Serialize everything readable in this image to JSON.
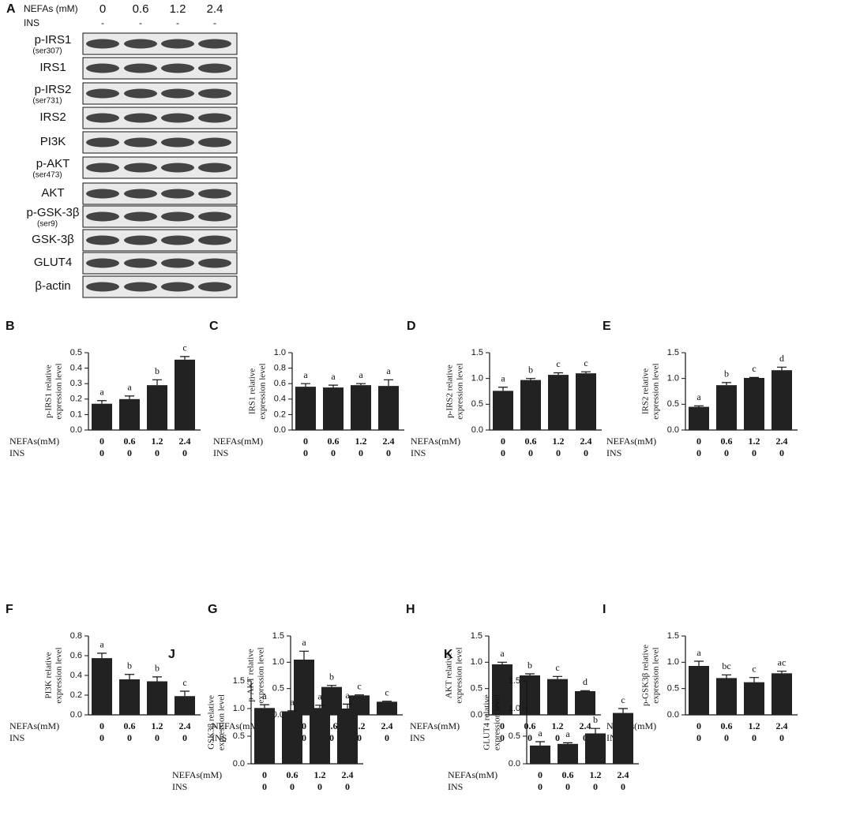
{
  "blot": {
    "panel": "A",
    "nefa_label": "NEFAs (mM)",
    "nefa": [
      "0",
      "0.6",
      "1.2",
      "2.4"
    ],
    "ins_label": "INS",
    "ins": [
      "-",
      "-",
      "-",
      "-"
    ],
    "rows": [
      {
        "label": "p-IRS1",
        "sub": "(ser307)"
      },
      {
        "label": "IRS1"
      },
      {
        "label": "p-IRS2",
        "sub": "(ser731)"
      },
      {
        "label": "IRS2"
      },
      {
        "label": "PI3K"
      },
      {
        "label": "p-AKT",
        "sub": "(ser473)"
      },
      {
        "label": "AKT"
      },
      {
        "label": "p-GSK-3β",
        "sub": "(ser9)"
      },
      {
        "label": "GSK-3β"
      },
      {
        "label": "GLUT4"
      },
      {
        "label": "β-actin"
      }
    ]
  },
  "chart_data": [
    {
      "type": "bar",
      "panel": "B",
      "ylabel": [
        "p-IRS1 relative",
        "expression level"
      ],
      "nefa_label": "NEFAs(mM)",
      "categories": [
        "0",
        "0.6",
        "1.2",
        "2.4"
      ],
      "ins_label": "INS",
      "ins": [
        "0",
        "0",
        "0",
        "0"
      ],
      "values": [
        0.17,
        0.2,
        0.29,
        0.455
      ],
      "errors": [
        0.02,
        0.02,
        0.035,
        0.02
      ],
      "annotations": [
        "a",
        "a",
        "b",
        "c"
      ],
      "color": "#222222",
      "ylim": [
        0,
        0.5
      ],
      "yticks": [
        {
          "value": 0,
          "label": "0.0"
        },
        0.1,
        0.2,
        0.3,
        0.4,
        0.5
      ]
    },
    {
      "type": "bar",
      "panel": "C",
      "ylabel": [
        "IRS1 relative",
        "expression level"
      ],
      "nefa_label": "NEFAs(mM)",
      "categories": [
        "0",
        "0.6",
        "1.2",
        "2.4"
      ],
      "ins_label": "INS",
      "ins": [
        "0",
        "0",
        "0",
        "0"
      ],
      "values": [
        0.56,
        0.55,
        0.58,
        0.57
      ],
      "errors": [
        0.04,
        0.03,
        0.02,
        0.08
      ],
      "annotations": [
        "a",
        "a",
        "a",
        "a"
      ],
      "color": "#222222",
      "ylim": [
        0,
        1.0
      ],
      "yticks": [
        {
          "value": 0,
          "label": "0.0"
        },
        0.2,
        0.4,
        0.6,
        0.8,
        {
          "value": 1,
          "label": "1.0"
        }
      ]
    },
    {
      "type": "bar",
      "panel": "D",
      "ylabel": [
        "p-IRS2 relative",
        "expression level"
      ],
      "nefa_label": "NEFAs(mM)",
      "categories": [
        "0",
        "0.6",
        "1.2",
        "2.4"
      ],
      "ins_label": "INS",
      "ins": [
        "0",
        "0",
        "0",
        "0"
      ],
      "values": [
        0.76,
        0.97,
        1.07,
        1.1
      ],
      "errors": [
        0.07,
        0.03,
        0.04,
        0.03
      ],
      "annotations": [
        "a",
        "b",
        "c",
        "c"
      ],
      "color": "#222222",
      "ylim": [
        0,
        1.5
      ],
      "yticks": [
        {
          "value": 0,
          "label": "0.0"
        },
        0.5,
        {
          "value": 1,
          "label": "1.0"
        },
        1.5
      ]
    },
    {
      "type": "bar",
      "panel": "E",
      "ylabel": [
        "IRS2 relative",
        "expression level"
      ],
      "nefa_label": "NEFAs(mM)",
      "categories": [
        "0",
        "0.6",
        "1.2",
        "2.4"
      ],
      "ins_label": "INS",
      "ins": [
        "0",
        "0",
        "0",
        "0"
      ],
      "values": [
        0.45,
        0.87,
        1.01,
        1.16
      ],
      "errors": [
        0.02,
        0.05,
        0.01,
        0.06
      ],
      "annotations": [
        "a",
        "b",
        "c",
        "d"
      ],
      "color": "#222222",
      "ylim": [
        0,
        1.5
      ],
      "yticks": [
        {
          "value": 0,
          "label": "0.0"
        },
        0.5,
        {
          "value": 1,
          "label": "1.0"
        },
        1.5
      ]
    },
    {
      "type": "bar",
      "panel": "F",
      "ylabel": [
        "PI3K relative",
        "expression level"
      ],
      "nefa_label": "NEFAs(mM)",
      "categories": [
        "0",
        "0.6",
        "1.2",
        "2.4"
      ],
      "ins_label": "INS",
      "ins": [
        "0",
        "0",
        "0",
        "0"
      ],
      "values": [
        0.575,
        0.36,
        0.34,
        0.19
      ],
      "errors": [
        0.05,
        0.05,
        0.045,
        0.05
      ],
      "annotations": [
        "a",
        "b",
        "b",
        "c"
      ],
      "color": "#222222",
      "ylim": [
        0,
        0.8
      ],
      "yticks": [
        {
          "value": 0,
          "label": "0.0"
        },
        0.2,
        0.4,
        0.6,
        0.8
      ]
    },
    {
      "type": "bar",
      "panel": "G",
      "ylabel": [
        "p-AKT relative",
        "expression level"
      ],
      "nefa_label": "NEFAs(mM)",
      "categories": [
        "0",
        "0.6",
        "1.2",
        "2.4"
      ],
      "ins_label": "INS",
      "ins": [
        "0",
        "0",
        "0",
        "0"
      ],
      "values": [
        1.05,
        0.53,
        0.37,
        0.25
      ],
      "errors": [
        0.16,
        0.03,
        0.01,
        0.01
      ],
      "annotations": [
        "a",
        "b",
        "c",
        "c"
      ],
      "color": "#222222",
      "ylim": [
        0,
        1.5
      ],
      "yticks": [
        {
          "value": 0,
          "label": "0.0"
        },
        0.5,
        {
          "value": 1,
          "label": "1.0"
        },
        1.5
      ]
    },
    {
      "type": "bar",
      "panel": "H",
      "ylabel": [
        "AKT relative",
        "expression level"
      ],
      "nefa_label": "NEFAs(mM)",
      "categories": [
        "0",
        "0.6",
        "1.2",
        "2.4"
      ],
      "ins_label": "INS",
      "ins": [
        "0",
        "0",
        "0",
        "0"
      ],
      "values": [
        0.96,
        0.75,
        0.68,
        0.45
      ],
      "errors": [
        0.04,
        0.03,
        0.05,
        0.01
      ],
      "annotations": [
        "a",
        "b",
        "c",
        "d"
      ],
      "color": "#222222",
      "ylim": [
        0,
        1.5
      ],
      "yticks": [
        {
          "value": 0,
          "label": "0.0"
        },
        0.5,
        {
          "value": 1,
          "label": "1.0"
        },
        1.5
      ]
    },
    {
      "type": "bar",
      "panel": "I",
      "ylabel": [
        "p-GSK3β  relative",
        "expression level"
      ],
      "nefa_label": "NEFAs(mM)",
      "categories": [
        "0",
        "0.6",
        "1.2",
        "2.4"
      ],
      "ins_label": "INS",
      "ins": [
        "0",
        "0",
        "0",
        "0"
      ],
      "values": [
        0.93,
        0.7,
        0.62,
        0.79
      ],
      "errors": [
        0.09,
        0.06,
        0.09,
        0.04
      ],
      "annotations": [
        "a",
        "bc",
        "c",
        "ac"
      ],
      "color": "#222222",
      "ylim": [
        0,
        1.5
      ],
      "yticks": [
        {
          "value": 0,
          "label": "0.0"
        },
        0.5,
        {
          "value": 1,
          "label": "1.0"
        },
        1.5
      ]
    },
    {
      "type": "bar",
      "panel": "J",
      "ylabel": [
        "GSK3β  relative",
        "expression level"
      ],
      "nefa_label": "NEFAs(mM)",
      "categories": [
        "0",
        "0.6",
        "1.2",
        "2.4"
      ],
      "ins_label": "INS",
      "ins": [
        "0",
        "0",
        "0",
        "0"
      ],
      "values": [
        1.01,
        0.95,
        1.01,
        1.0
      ],
      "errors": [
        0.06,
        0.01,
        0.05,
        0.08
      ],
      "annotations": [
        "a",
        "a",
        "a",
        "a"
      ],
      "color": "#222222",
      "ylim": [
        0,
        1.5
      ],
      "yticks": [
        {
          "value": 0,
          "label": "0.0"
        },
        0.5,
        {
          "value": 1,
          "label": "1.0"
        },
        1.5
      ]
    },
    {
      "type": "bar",
      "panel": "K",
      "ylabel": [
        "GLUT4 relative",
        "expression level"
      ],
      "nefa_label": "NEFAs(mM)",
      "categories": [
        "0",
        "0.6",
        "1.2",
        "2.4"
      ],
      "ins_label": "INS",
      "ins": [
        "0",
        "0",
        "0",
        "0"
      ],
      "values": [
        0.33,
        0.36,
        0.55,
        0.92
      ],
      "errors": [
        0.07,
        0.02,
        0.09,
        0.08
      ],
      "annotations": [
        "a",
        "a",
        "b",
        "c"
      ],
      "color": "#222222",
      "ylim": [
        0,
        1.5
      ],
      "yticks": [
        {
          "value": 0,
          "label": "0.0"
        },
        0.5,
        {
          "value": 1,
          "label": "1.0"
        },
        1.5
      ]
    }
  ]
}
